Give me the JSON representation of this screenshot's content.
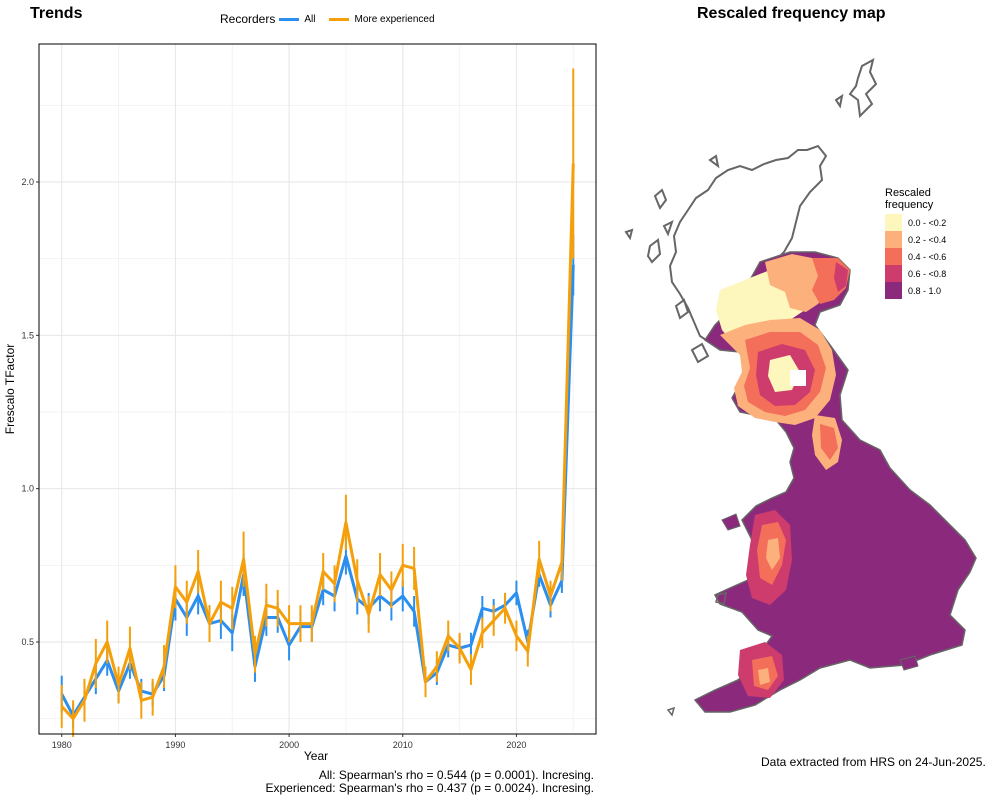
{
  "left_title": "Trends",
  "right_title": "Rescaled frequency map",
  "legend": {
    "title": "Recorders",
    "items": [
      {
        "label": "All",
        "color": "#2b8ff0"
      },
      {
        "label": "More experienced",
        "color": "#f5a00a"
      }
    ]
  },
  "chart_data": {
    "type": "line",
    "xlabel": "Year",
    "ylabel": "Frescalo TFactor",
    "xlim": [
      1978,
      2027
    ],
    "ylim": [
      0.2,
      2.45
    ],
    "x_ticks": [
      1980,
      1990,
      2000,
      2010,
      2020
    ],
    "y_ticks": [
      0.5,
      1.0,
      1.5,
      2.0
    ],
    "grid": true,
    "legend_position": "top",
    "x": [
      1980,
      1981,
      1982,
      1983,
      1984,
      1985,
      1986,
      1987,
      1988,
      1989,
      1990,
      1991,
      1992,
      1993,
      1994,
      1995,
      1996,
      1997,
      1998,
      1999,
      2000,
      2001,
      2002,
      2003,
      2004,
      2005,
      2006,
      2007,
      2008,
      2009,
      2010,
      2011,
      2012,
      2013,
      2014,
      2015,
      2016,
      2017,
      2018,
      2019,
      2020,
      2021,
      2022,
      2023,
      2024,
      2025
    ],
    "series": [
      {
        "name": "All",
        "color": "#2b8ff0",
        "values": [
          0.33,
          0.26,
          0.32,
          0.38,
          0.44,
          0.34,
          0.43,
          0.34,
          0.33,
          0.39,
          0.64,
          0.58,
          0.65,
          0.56,
          0.57,
          0.53,
          0.72,
          0.42,
          0.58,
          0.58,
          0.49,
          0.55,
          0.55,
          0.67,
          0.65,
          0.78,
          0.64,
          0.61,
          0.65,
          0.62,
          0.65,
          0.6,
          0.37,
          0.4,
          0.49,
          0.48,
          0.49,
          0.61,
          0.6,
          0.62,
          0.66,
          0.5,
          0.72,
          0.62,
          0.7,
          1.73
        ],
        "err": [
          0.06,
          0.04,
          0.05,
          0.05,
          0.05,
          0.04,
          0.05,
          0.04,
          0.04,
          0.05,
          0.07,
          0.06,
          0.06,
          0.06,
          0.06,
          0.06,
          0.07,
          0.05,
          0.06,
          0.05,
          0.05,
          0.05,
          0.05,
          0.05,
          0.05,
          0.06,
          0.05,
          0.05,
          0.05,
          0.05,
          0.05,
          0.05,
          0.04,
          0.04,
          0.04,
          0.04,
          0.04,
          0.04,
          0.04,
          0.04,
          0.04,
          0.04,
          0.04,
          0.04,
          0.04,
          0.1
        ]
      },
      {
        "name": "More experienced",
        "color": "#f5a00a",
        "values": [
          0.29,
          0.25,
          0.31,
          0.43,
          0.5,
          0.36,
          0.48,
          0.31,
          0.32,
          0.42,
          0.68,
          0.63,
          0.73,
          0.56,
          0.63,
          0.61,
          0.77,
          0.46,
          0.62,
          0.61,
          0.56,
          0.56,
          0.56,
          0.73,
          0.69,
          0.89,
          0.7,
          0.59,
          0.72,
          0.67,
          0.75,
          0.74,
          0.37,
          0.42,
          0.52,
          0.48,
          0.41,
          0.53,
          0.57,
          0.61,
          0.52,
          0.47,
          0.77,
          0.65,
          0.76,
          2.06
        ],
        "err": [
          0.07,
          0.06,
          0.07,
          0.08,
          0.07,
          0.06,
          0.07,
          0.06,
          0.06,
          0.07,
          0.07,
          0.07,
          0.07,
          0.06,
          0.07,
          0.07,
          0.09,
          0.06,
          0.07,
          0.06,
          0.06,
          0.06,
          0.06,
          0.06,
          0.06,
          0.09,
          0.07,
          0.06,
          0.07,
          0.06,
          0.07,
          0.07,
          0.05,
          0.05,
          0.05,
          0.05,
          0.05,
          0.05,
          0.05,
          0.05,
          0.05,
          0.05,
          0.06,
          0.05,
          0.06,
          0.31
        ]
      }
    ]
  },
  "stats": [
    "All: Spearman's rho = 0.544 (p = 0.0001). Incresing.",
    "Experienced: Spearman's rho = 0.437 (p = 0.0024). Incresing."
  ],
  "map_legend": {
    "title": "Rescaled\nfrequency",
    "bins": [
      {
        "label": "0.0 - <0.2",
        "color": "#fdf6bd"
      },
      {
        "label": "0.2 - <0.4",
        "color": "#fcb07c"
      },
      {
        "label": "0.4 - <0.6",
        "color": "#f36f5a"
      },
      {
        "label": "0.6 - <0.8",
        "color": "#cd3c6c"
      },
      {
        "label": "0.8 - 1.0",
        "color": "#8b2a7d"
      }
    ]
  },
  "extract_note": "Data extracted from HRS on 24-Jun-2025."
}
